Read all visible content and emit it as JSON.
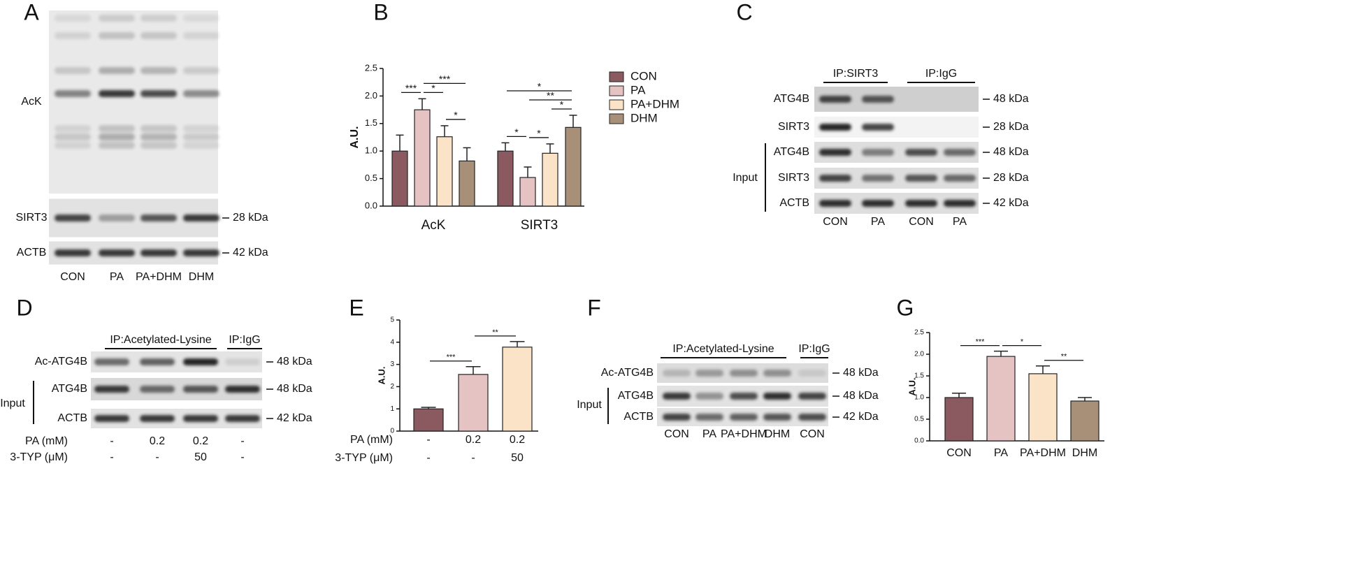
{
  "blot_a": {
    "letter": "A",
    "rows": [
      {
        "label": "AcK"
      },
      {
        "label": "SIRT3",
        "marker": "28 kDa"
      },
      {
        "label": "ACTB",
        "marker": "42 kDa"
      }
    ],
    "lanes": [
      "CON",
      "PA",
      "PA+DHM",
      "DHM"
    ]
  },
  "blot_c": {
    "letter": "C",
    "headers": [
      {
        "label": "IP:SIRT3"
      },
      {
        "label": "IP:IgG"
      }
    ],
    "rows": [
      {
        "label": "ATG4B",
        "marker": "48 kDa"
      },
      {
        "label": "SIRT3",
        "marker": "28 kDa"
      },
      {
        "label": "ATG4B",
        "marker": "48 kDa"
      },
      {
        "label": "SIRT3",
        "marker": "28 kDa"
      },
      {
        "label": "ACTB",
        "marker": "42 kDa"
      }
    ],
    "group_label": "Input",
    "lanes": [
      "CON",
      "PA",
      "CON",
      "PA"
    ]
  },
  "blot_d": {
    "letter": "D",
    "headers": [
      {
        "label": "IP:Acetylated-Lysine"
      },
      {
        "label": "IP:IgG"
      }
    ],
    "rows": [
      {
        "label": "Ac-ATG4B",
        "marker": "48 kDa"
      },
      {
        "label": "ATG4B",
        "marker": "48 kDa"
      },
      {
        "label": "ACTB",
        "marker": "42 kDa"
      }
    ],
    "group_label": "Input",
    "conditions": [
      {
        "label": "PA (mM)",
        "values": [
          "-",
          "0.2",
          "0.2",
          "-"
        ]
      },
      {
        "label": "3-TYP (μM)",
        "values": [
          "-",
          "-",
          "50",
          "-"
        ]
      }
    ]
  },
  "blot_f": {
    "letter": "F",
    "headers": [
      {
        "label": "IP:Acetylated-Lysine"
      },
      {
        "label": "IP:IgG"
      }
    ],
    "rows": [
      {
        "label": "Ac-ATG4B",
        "marker": "48 kDa"
      },
      {
        "label": "ATG4B",
        "marker": "48 kDa"
      },
      {
        "label": "ACTB",
        "marker": "42 kDa"
      }
    ],
    "group_label": "Input",
    "lanes": [
      "CON",
      "PA",
      "PA+DHM",
      "DHM",
      "CON"
    ]
  },
  "chart_data": [
    {
      "type": "bar",
      "panel": "B",
      "ylabel": "A.U.",
      "categories": [
        "AcK",
        "SIRT3"
      ],
      "series": [
        {
          "name": "CON",
          "color": "#8b5a60",
          "values": [
            1.0,
            1.0
          ],
          "errors": [
            0.29,
            0.15
          ]
        },
        {
          "name": "PA",
          "color": "#e6c3c3",
          "values": [
            1.75,
            0.52
          ],
          "errors": [
            0.2,
            0.19
          ]
        },
        {
          "name": "PA+DHM",
          "color": "#fbe3c8",
          "values": [
            1.26,
            0.96
          ],
          "errors": [
            0.2,
            0.17
          ]
        },
        {
          "name": "DHM",
          "color": "#a89078",
          "values": [
            0.82,
            1.43
          ],
          "errors": [
            0.24,
            0.22
          ]
        }
      ],
      "ylim": [
        0,
        2.5
      ],
      "yticks": [
        {
          "value": 0,
          "label": "0.0"
        },
        0.5,
        {
          "value": 1,
          "label": "1.0"
        },
        1.5,
        {
          "value": 2,
          "label": "2.0"
        },
        2.5
      ],
      "significance": [
        {
          "category": 0,
          "between": [
            0,
            1
          ],
          "label": "***"
        },
        {
          "category": 0,
          "between": [
            1,
            2
          ],
          "label": "*"
        },
        {
          "category": 0,
          "between": [
            1,
            3
          ],
          "label": "***"
        },
        {
          "category": 0,
          "between": [
            2,
            3
          ],
          "label": "*"
        },
        {
          "category": 1,
          "between": [
            0,
            3
          ],
          "label": "*"
        },
        {
          "category": 1,
          "between": [
            1,
            3
          ],
          "label": "**"
        },
        {
          "category": 1,
          "between": [
            2,
            3
          ],
          "label": "*"
        },
        {
          "category": 1,
          "between": [
            0,
            1
          ],
          "label": "*"
        },
        {
          "category": 1,
          "between": [
            1,
            2
          ],
          "label": "*"
        }
      ]
    },
    {
      "type": "bar",
      "panel": "E",
      "ylabel": "A.U.",
      "values": [
        1.0,
        2.55,
        3.78
      ],
      "errors": [
        0.07,
        0.35,
        0.25
      ],
      "colors": [
        "#8b5a60",
        "#e6c3c3",
        "#fbe3c8"
      ],
      "conditions": [
        {
          "label": "PA (mM)",
          "values": [
            "-",
            "0.2",
            "0.2"
          ]
        },
        {
          "label": "3-TYP (μM)",
          "values": [
            "-",
            "-",
            "50"
          ]
        }
      ],
      "ylim": [
        0,
        5
      ],
      "yticks": [
        0,
        1,
        2,
        3,
        4,
        5
      ],
      "significance": [
        {
          "between": [
            0,
            1
          ],
          "label": "***"
        },
        {
          "between": [
            1,
            2
          ],
          "label": "**"
        }
      ]
    },
    {
      "type": "bar",
      "panel": "G",
      "ylabel": "A.U.",
      "categories": [
        "CON",
        "PA",
        "PA+DHM",
        "DHM"
      ],
      "values": [
        1.0,
        1.95,
        1.55,
        0.92
      ],
      "errors": [
        0.1,
        0.12,
        0.18,
        0.08
      ],
      "colors": [
        "#8b5a60",
        "#e6c3c3",
        "#fbe3c8",
        "#a89078"
      ],
      "ylim": [
        0,
        2.5
      ],
      "yticks": [
        {
          "value": 0,
          "label": "0.0"
        },
        0.5,
        {
          "value": 1,
          "label": "1.0"
        },
        1.5,
        {
          "value": 2,
          "label": "2.0"
        },
        2.5
      ],
      "significance": [
        {
          "between": [
            0,
            1
          ],
          "label": "***"
        },
        {
          "between": [
            1,
            2
          ],
          "label": "*"
        },
        {
          "between": [
            2,
            3
          ],
          "label": "**"
        }
      ]
    }
  ]
}
